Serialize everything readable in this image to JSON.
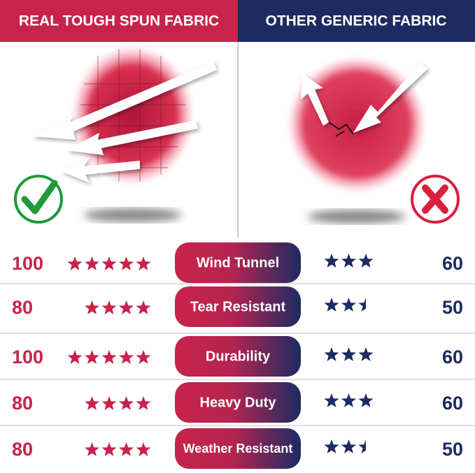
{
  "header": {
    "left": "REAL TOUGH SPUN FABRIC",
    "right": "OTHER GENERIC FABRIC"
  },
  "rows": [
    {
      "label": "Wind Tunnel",
      "left_score": "100",
      "left_stars": 5,
      "right_stars": 3,
      "right_score": "60"
    },
    {
      "label": "Tear Resistant",
      "left_score": "80",
      "left_stars": 4,
      "right_stars": 2.5,
      "right_score": "50"
    },
    {
      "label": "Durability",
      "left_score": "100",
      "left_stars": 5,
      "right_stars": 3,
      "right_score": "60"
    },
    {
      "label": "Heavy Duty",
      "left_score": "80",
      "left_stars": 4,
      "right_stars": 3,
      "right_score": "60"
    },
    {
      "label": "Weather Resistant",
      "left_score": "80",
      "left_stars": 4,
      "right_stars": 2.5,
      "right_score": "50"
    }
  ]
}
